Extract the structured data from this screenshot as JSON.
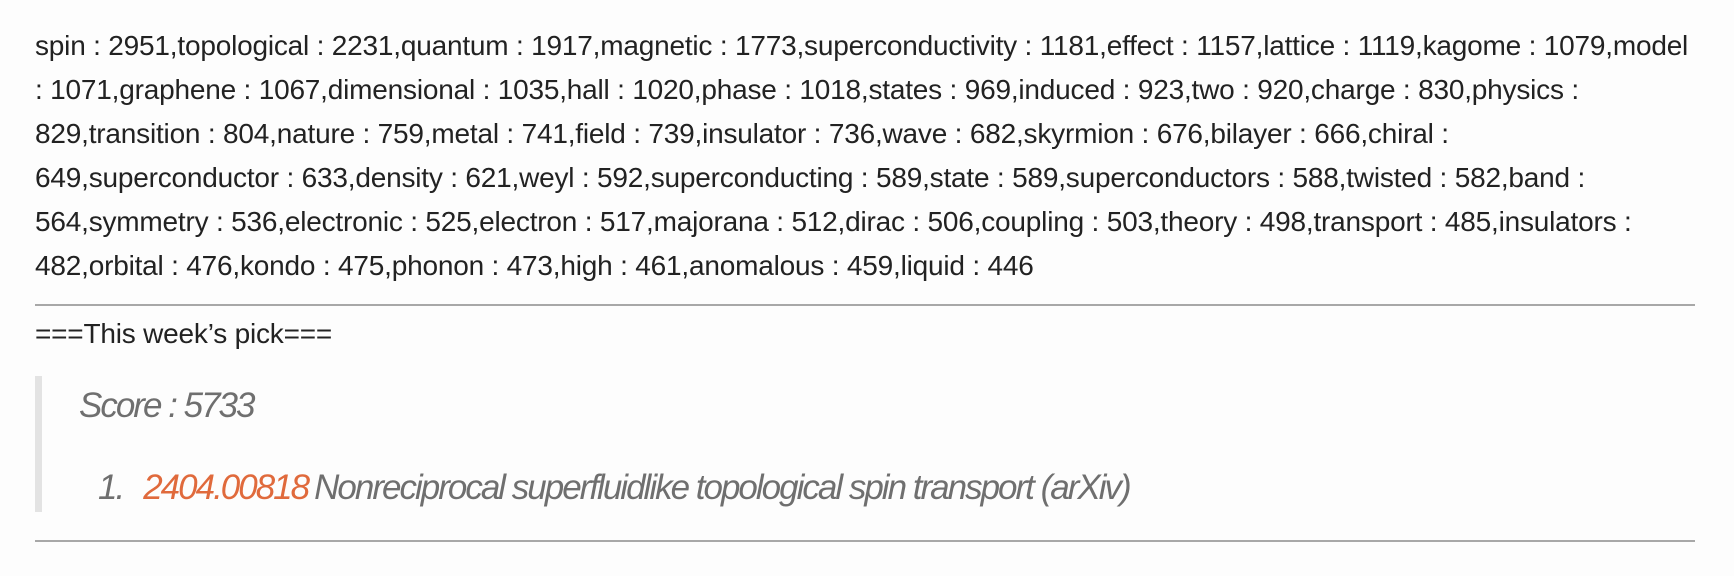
{
  "word_frequencies": "spin : 2951,topological : 2231,quantum : 1917,magnetic : 1773,superconductivity : 1181,effect : 1157,lattice : 1119,kagome : 1079,model : 1071,graphene : 1067,dimensional : 1035,hall : 1020,phase : 1018,states : 969,induced : 923,two : 920,charge : 830,physics : 829,transition : 804,nature : 759,metal : 741,field : 739,insulator : 736,wave : 682,skyrmion : 676,bilayer : 666,chiral : 649,superconductor : 633,density : 621,weyl : 592,superconducting : 589,state : 589,superconductors : 588,twisted : 582,band : 564,symmetry : 536,electronic : 525,electron : 517,majorana : 512,dirac : 506,coupling : 503,theory : 498,transport : 485,insulators : 482,orbital : 476,kondo : 475,phonon : 473,high : 461,anomalous : 459,liquid : 446",
  "section_heading": "===This week’s pick===",
  "pick": {
    "score_text": "Score : 5733",
    "item_number": "1.",
    "arxiv_id": "2404.00818",
    "title": "Nonreciprocal superfluidlike topological spin transport (arXiv)"
  },
  "colors": {
    "text": "#222222",
    "muted": "#6f6f6f",
    "link": "#e06a3c",
    "divider": "#a8a8a8",
    "quote_bar": "#e3e3e3"
  }
}
